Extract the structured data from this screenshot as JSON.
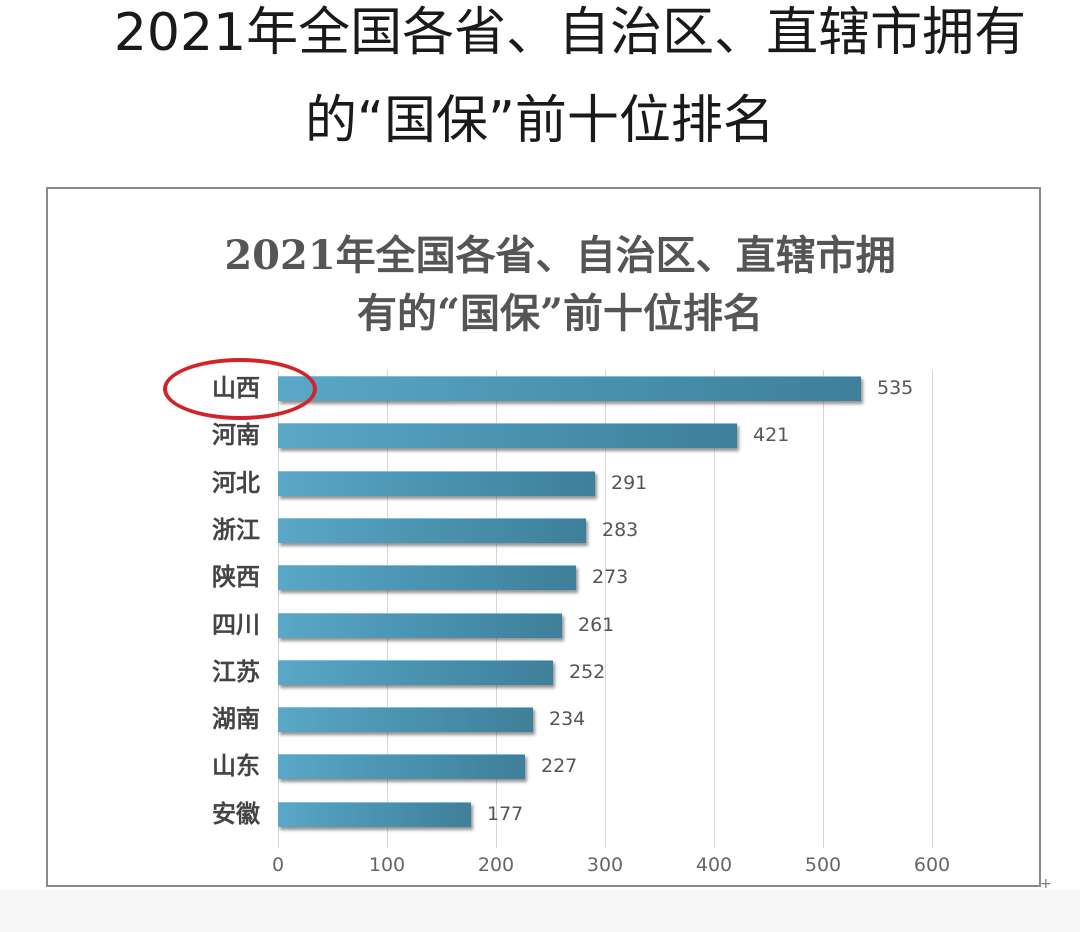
{
  "page": {
    "title_line1": "2021年全国各省、自治区、直辖市拥有",
    "title_line2": "的“国保”前十位排名"
  },
  "chart_data": {
    "type": "bar",
    "orientation": "horizontal",
    "title": "2021年全国各省、自治区、直辖市拥有的“国保”前十位排名",
    "title_line1": "2021年全国各省、自治区、直辖市拥",
    "title_line2": "有的“国保”前十位排名",
    "categories": [
      "山西",
      "河南",
      "河北",
      "浙江",
      "陕西",
      "四川",
      "江苏",
      "湖南",
      "山东",
      "安徽"
    ],
    "values": [
      535,
      421,
      291,
      283,
      273,
      261,
      252,
      234,
      227,
      177
    ],
    "value_labels": [
      "535",
      "421",
      "291",
      "283",
      "273",
      "261",
      "252",
      "234",
      "227",
      "177"
    ],
    "xlabel": "",
    "ylabel": "",
    "xlim": [
      0,
      600
    ],
    "x_ticks": [
      "0",
      "100",
      "200",
      "300",
      "400",
      "500",
      "600"
    ],
    "grid": true,
    "legend": null,
    "bar_color": "#4a93b0",
    "annotations": [
      {
        "type": "ellipse",
        "target": "山西",
        "color": "#d2232a"
      }
    ]
  }
}
